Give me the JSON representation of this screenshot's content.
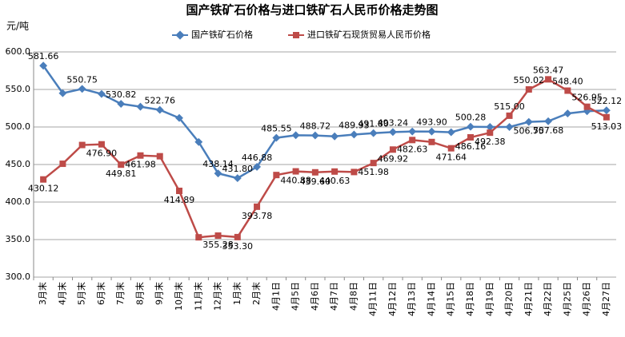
{
  "chart_data": {
    "type": "line",
    "title": "国产铁矿石价格与进口铁矿石人民币价格走势图",
    "y_label": "元/吨",
    "categories": [
      "3月末",
      "4月末",
      "5月末",
      "6月末",
      "7月末",
      "8月末",
      "9月末",
      "10月末",
      "11月末",
      "12月末",
      "1月末",
      "2月末",
      "4月1日",
      "4月5日",
      "4月6日",
      "4月7日",
      "4月8日",
      "4月11日",
      "4月12日",
      "4月13日",
      "4月14日",
      "4月15日",
      "4月18日",
      "4月19日",
      "4月20日",
      "4月21日",
      "4月22日",
      "4月25日",
      "4月26日",
      "4月27日"
    ],
    "series": [
      {
        "name": "国产铁矿石价格",
        "color": "#4a7ebb",
        "values": [
          581.66,
          545,
          550.75,
          544,
          530.82,
          527,
          522.76,
          512,
          480,
          438.14,
          431.8,
          446.88,
          485.55,
          489,
          488.72,
          487.5,
          489.93,
          491.8,
          493.24,
          494,
          493.9,
          493,
          500.28,
          500,
          500,
          506.75,
          507.68,
          518,
          521,
          522.12
        ],
        "value_labels": [
          "581.66",
          null,
          "550.75",
          null,
          "530.82",
          null,
          "522.76",
          null,
          null,
          "438.14",
          "431.80",
          "446.88",
          "485.55",
          null,
          "488.72",
          null,
          "489.93",
          "491.80",
          "493.24",
          null,
          "493.90",
          null,
          "500.28",
          null,
          null,
          "506.75",
          "507.68",
          null,
          null,
          "522.12"
        ]
      },
      {
        "name": "进口铁矿石现货贸易人民币价格",
        "color": "#be4b48",
        "values": [
          430.12,
          451,
          476,
          476.9,
          449.81,
          461.98,
          461,
          414.89,
          353,
          355.28,
          353.3,
          393.78,
          436,
          440.88,
          439.6,
          440.63,
          440,
          451.98,
          469.92,
          482.63,
          480,
          471.64,
          486.16,
          492.38,
          515,
          550.02,
          563.47,
          548.4,
          526.95,
          513.03
        ],
        "value_labels": [
          "430.12",
          null,
          null,
          "476.90",
          "449.81",
          "461.98",
          null,
          "414.89",
          null,
          "355.28",
          "353.30",
          "393.78",
          null,
          "440.88",
          "439.60",
          "440.63",
          null,
          "451.98",
          "469.92",
          "482.63",
          null,
          "471.64",
          "486.16",
          "492.38",
          "515.00",
          "550.02",
          "563.47",
          "548.40",
          "526.95",
          "513.03"
        ]
      }
    ],
    "ylim": [
      300,
      600
    ],
    "yticks": [
      {
        "value": 300,
        "label": "300.0"
      },
      {
        "value": 350,
        "label": "350.0"
      },
      {
        "value": 400,
        "label": "400.0"
      },
      {
        "value": 450,
        "label": "450.0"
      },
      {
        "value": 500,
        "label": "500.0"
      },
      {
        "value": 550,
        "label": "550.0"
      },
      {
        "value": 600,
        "label": "600.0"
      }
    ],
    "grid": true
  }
}
